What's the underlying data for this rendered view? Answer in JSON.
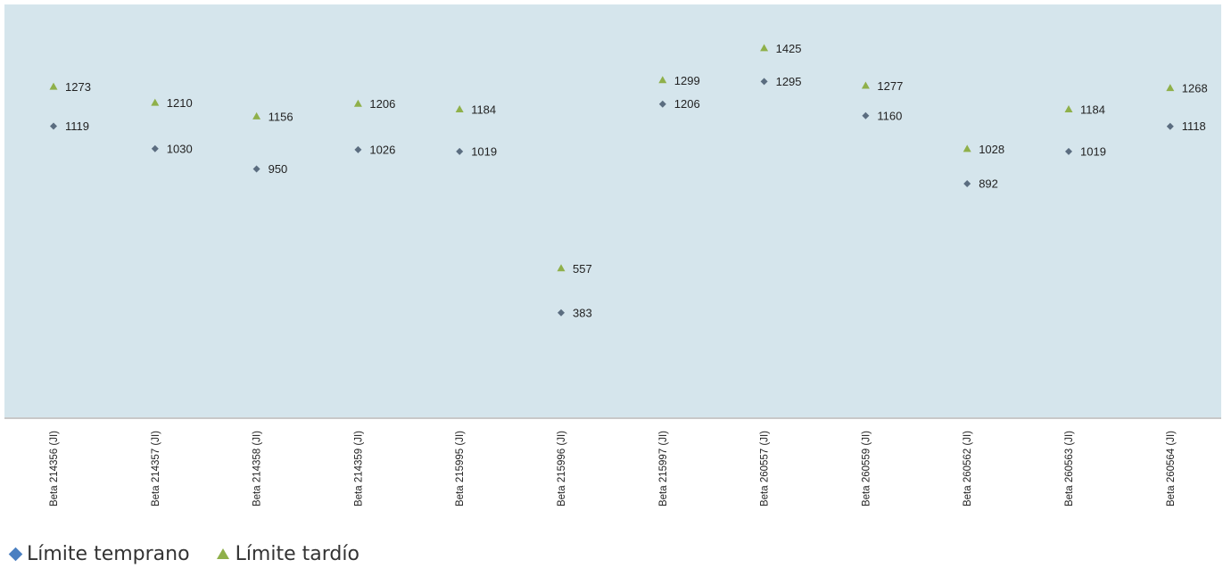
{
  "colors": {
    "plot_background": "#d5e5ec",
    "early_marker": "#5b6d80",
    "late_marker": "#8fb04a",
    "legend_early": "#4a7fc1",
    "legend_late": "#8fb04a"
  },
  "chart_data": {
    "type": "scatter",
    "categories": [
      "Beta 214356 (JI)",
      "Beta 214357 (JI)",
      "Beta 214358 (JI)",
      "Beta 214359 (JI)",
      "Beta 215995 (JI)",
      "Beta 215996 (JI)",
      "Beta 215997 (JI)",
      "Beta 260557 (JI)",
      "Beta 260559 (JI)",
      "Beta 260562 (JI)",
      "Beta 260563 (JI)",
      "Beta 260564 (JI)"
    ],
    "series": [
      {
        "name": "Límite temprano",
        "marker": "diamond",
        "values": [
          1119,
          1030,
          950,
          1026,
          1019,
          383,
          1206,
          1295,
          1160,
          892,
          1019,
          1118
        ]
      },
      {
        "name": "Límite tardío",
        "marker": "triangle",
        "values": [
          1273,
          1210,
          1156,
          1206,
          1184,
          557,
          1299,
          1425,
          1277,
          1028,
          1184,
          1268
        ]
      }
    ],
    "grid": false,
    "legend_position": "bottom-left"
  },
  "legend": {
    "early_label": "Límite temprano",
    "late_label": "Límite tardío"
  }
}
